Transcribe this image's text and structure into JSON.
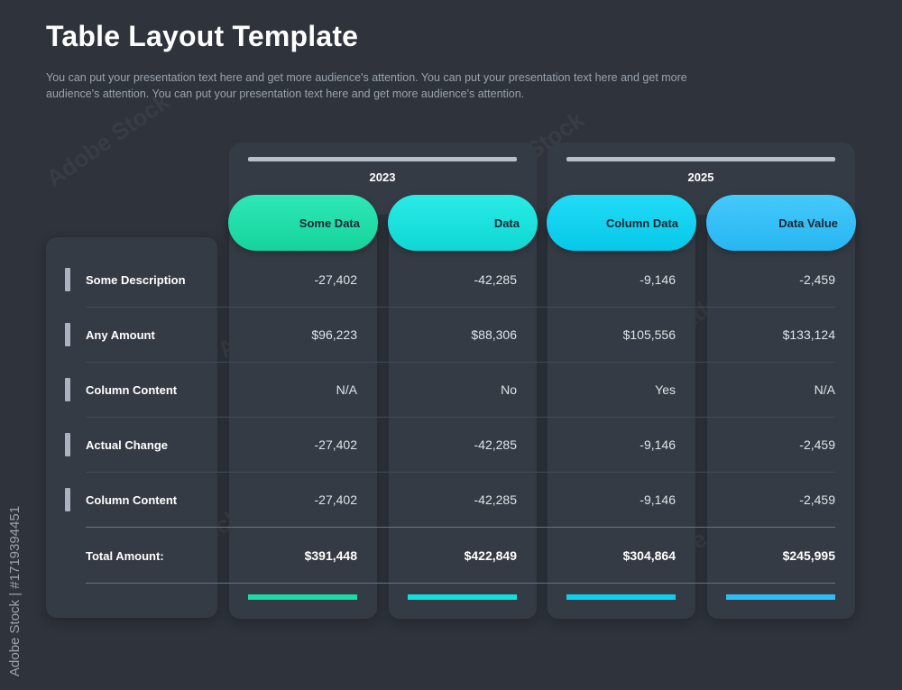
{
  "title": "Table Layout Template",
  "subtitle": "You can put your presentation text here and get more audience's attention. You can put your presentation text here and get more audience's attention. You can put your presentation text here and get more audience's attention.",
  "groups": [
    {
      "year": "2023"
    },
    {
      "year": "2025"
    }
  ],
  "columns": [
    {
      "label": "Some Data",
      "color": "#19dba3"
    },
    {
      "label": "Data",
      "color": "#12dedb"
    },
    {
      "label": "Column Data",
      "color": "#0ccfee"
    },
    {
      "label": "Data Value",
      "color": "#2dbdf5"
    }
  ],
  "rows": [
    {
      "label": "Some Description",
      "values": [
        "-27,402",
        "-42,285",
        "-9,146",
        "-2,459"
      ]
    },
    {
      "label": "Any Amount",
      "values": [
        "$96,223",
        "$88,306",
        "$105,556",
        "$133,124"
      ]
    },
    {
      "label": "Column Content",
      "values": [
        "N/A",
        "No",
        "Yes",
        "N/A"
      ]
    },
    {
      "label": "Actual Change",
      "values": [
        "-27,402",
        "-42,285",
        "-9,146",
        "-2,459"
      ]
    },
    {
      "label": "Column Content",
      "values": [
        "-27,402",
        "-42,285",
        "-9,146",
        "-2,459"
      ]
    }
  ],
  "total": {
    "label": "Total Amount:",
    "values": [
      "$391,448",
      "$422,849",
      "$304,864",
      "$245,995"
    ]
  },
  "watermark": {
    "text": "Adobe Stock",
    "stock_id": "Adobe Stock | #1719394451"
  }
}
